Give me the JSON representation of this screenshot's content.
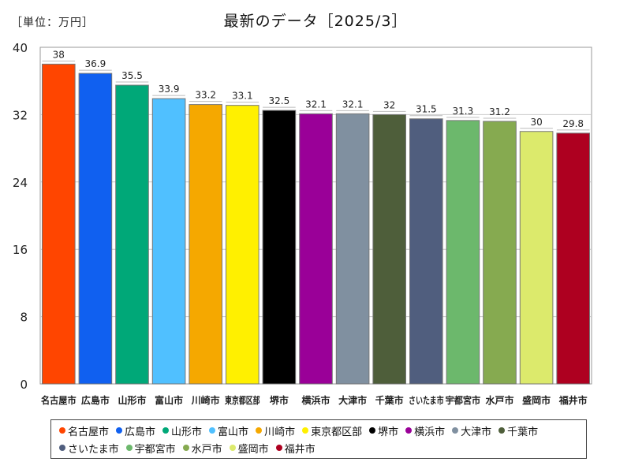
{
  "header": {
    "unit": "［単位：万円］"
  },
  "chart_data": {
    "type": "bar",
    "title": "最新のデータ［2025/3］",
    "categories": [
      "名古屋市",
      "広島市",
      "山形市",
      "富山市",
      "川崎市",
      "東京都区部",
      "堺市",
      "横浜市",
      "大津市",
      "千葉市",
      "さいたま市",
      "宇都宮市",
      "水戸市",
      "盛岡市",
      "福井市"
    ],
    "values": [
      38,
      36.9,
      35.5,
      33.9,
      33.2,
      33.1,
      32.5,
      32.1,
      32.1,
      32,
      31.5,
      31.3,
      31.2,
      30,
      29.8
    ],
    "value_labels": [
      "38",
      "36.9",
      "35.5",
      "33.9",
      "33.2",
      "33.1",
      "32.5",
      "32.1",
      "32.1",
      "32",
      "31.5",
      "31.3",
      "31.2",
      "30",
      "29.8"
    ],
    "colors": [
      "#ff4500",
      "#1060f0",
      "#00a878",
      "#50c0ff",
      "#f5a800",
      "#fff000",
      "#000000",
      "#9a0098",
      "#8090a0",
      "#4e5e3a",
      "#505e7e",
      "#6cb86c",
      "#86aa50",
      "#dcea6c",
      "#ae0020"
    ],
    "ylim": [
      0,
      40
    ],
    "yticks": [
      0,
      8,
      16,
      24,
      32,
      40
    ],
    "ytick_labels": [
      "0",
      "8",
      "16",
      "24",
      "32",
      "40"
    ],
    "grid": true,
    "legend_position": "bottom",
    "xlabel": "",
    "ylabel": ""
  }
}
